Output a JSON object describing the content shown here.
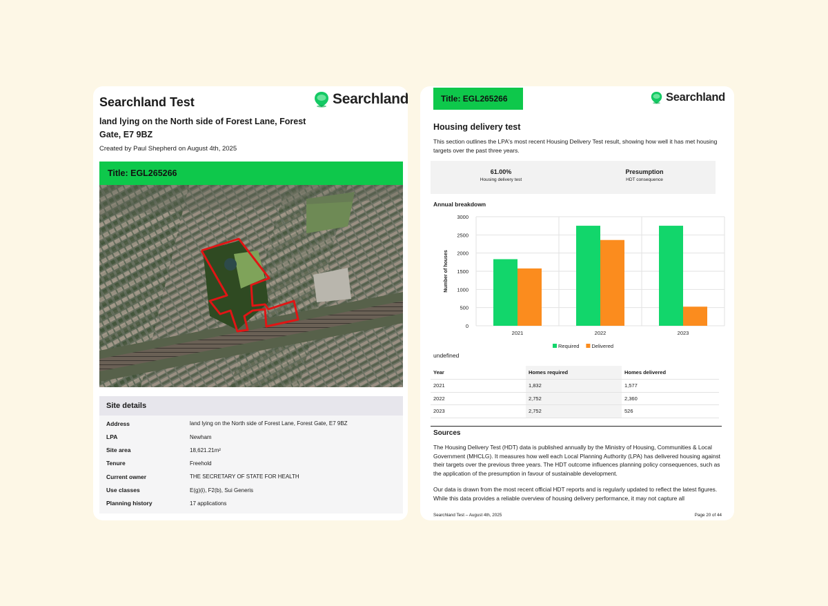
{
  "brand": {
    "name": "Searchland",
    "color": "#0ec84b"
  },
  "page1": {
    "title": "Searchland Test",
    "subtitle": "land lying on the North side of Forest Lane, Forest Gate, E7 9BZ",
    "created": "Created by Paul Shepherd on August 4th, 2025",
    "title_bar": "Title: EGL265266",
    "site_details": {
      "heading": "Site details",
      "rows": [
        {
          "label": "Address",
          "value": "land lying on the North side of Forest Lane, Forest Gate, E7 9BZ"
        },
        {
          "label": "LPA",
          "value": "Newham"
        },
        {
          "label": "Site area",
          "value": "18,621.21m²"
        },
        {
          "label": "Tenure",
          "value": "Freehold"
        },
        {
          "label": "Current owner",
          "value": "THE SECRETARY OF STATE FOR HEALTH"
        },
        {
          "label": "Use classes",
          "value": "E(g)(i), F2(b), Sui Generis"
        },
        {
          "label": "Planning history",
          "value": "17 applications"
        }
      ]
    }
  },
  "page2": {
    "title_bar": "Title: EGL265266",
    "heading": "Housing delivery test",
    "intro": "This section outlines the LPA's most recent Housing Delivery Test result, showing how well it has met housing targets over the past three years.",
    "stats": [
      {
        "value": "61.00%",
        "label": "Housing delivery test"
      },
      {
        "value": "Presumption",
        "label": "HDT consequence"
      }
    ],
    "annual_label": "Annual breakdown",
    "undefined_text": "undefined",
    "table": {
      "headers": [
        "Year",
        "Homes required",
        "Homes delivered"
      ],
      "rows": [
        [
          "2021",
          "1,832",
          "1,577"
        ],
        [
          "2022",
          "2,752",
          "2,360"
        ],
        [
          "2023",
          "2,752",
          "526"
        ]
      ]
    },
    "sources_heading": "Sources",
    "sources_p1": "The Housing Delivery Test (HDT) data is published annually by the Ministry of Housing, Communities & Local Government (MHCLG). It measures how well each Local Planning Authority (LPA) has delivered housing against their targets over the previous three years. The HDT outcome influences planning policy consequences, such as the application of the presumption in favour of sustainable development.",
    "sources_p2": "Our data is drawn from the most recent official HDT reports and is regularly updated to reflect the latest figures. While this data provides a reliable overview of housing delivery performance, it may not capture all",
    "footer_left": "Searchland Test – August 4th, 2025",
    "footer_right": "Page 20 of 44"
  },
  "chart_data": {
    "type": "bar",
    "title": "Annual breakdown",
    "xlabel": "",
    "ylabel": "Number of houses",
    "categories": [
      "2021",
      "2022",
      "2023"
    ],
    "series": [
      {
        "name": "Required",
        "color": "#12d66b",
        "values": [
          1832,
          2752,
          2752
        ]
      },
      {
        "name": "Delivered",
        "color": "#fb8c1e",
        "values": [
          1577,
          2360,
          526
        ]
      }
    ],
    "ylim": [
      0,
      3000
    ],
    "yticks": [
      "0",
      "500",
      "1000",
      "1500",
      "2000",
      "2500",
      "3000"
    ],
    "legend": "bottom"
  }
}
